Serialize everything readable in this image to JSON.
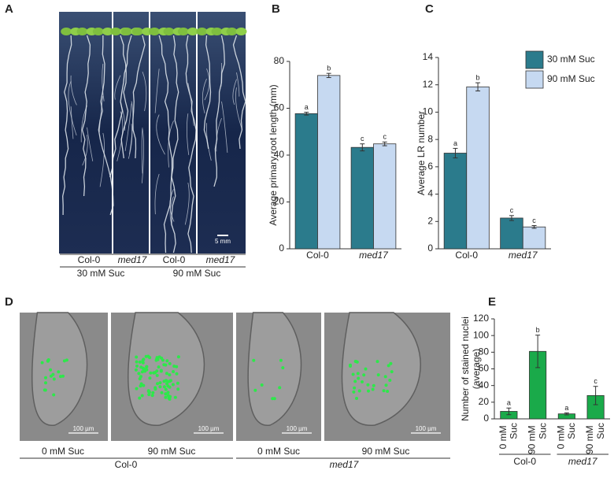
{
  "panel_labels": [
    "A",
    "B",
    "C",
    "D",
    "E"
  ],
  "panel_a": {
    "scale_bar": "5 mm",
    "genotypes": [
      "Col-0",
      "med17",
      "Col-0",
      "med17"
    ],
    "conditions": [
      "30 mM Suc",
      "90 mM Suc"
    ]
  },
  "panel_d": {
    "scale_bars": [
      "100 µm",
      "100 µm",
      "100 µm",
      "100 µm"
    ],
    "conditions": [
      "0 mM Suc",
      "90 mM Suc",
      "0 mM Suc",
      "90 mM Suc"
    ],
    "genotypes": [
      "Col-0",
      "med17"
    ]
  },
  "chart_data": [
    {
      "type": "bar",
      "ylabel": "Average primary root length (mm)",
      "categories": [
        "Col-0",
        "med17"
      ],
      "series": [
        {
          "color": "#2b7b8c",
          "values": [
            57.7,
            43.3
          ],
          "errors": [
            0.6,
            1.5
          ],
          "letters": [
            "a",
            "c"
          ]
        },
        {
          "color": "#c6d9f1",
          "values": [
            74,
            44.8
          ],
          "errors": [
            0.9,
            0.8
          ],
          "letters": [
            "b",
            "c"
          ]
        }
      ],
      "ylim": [
        0,
        80
      ],
      "yticks": [
        0,
        20,
        40,
        60,
        80
      ]
    },
    {
      "type": "bar",
      "ylabel": "Average LR number",
      "categories": [
        "Col-0",
        "med17"
      ],
      "series": [
        {
          "name": "30 mM Suc",
          "color": "#2b7b8c",
          "values": [
            7.0,
            2.25
          ],
          "errors": [
            0.35,
            0.18
          ],
          "letters": [
            "a",
            "c"
          ]
        },
        {
          "name": "90 mM Suc",
          "color": "#c6d9f1",
          "values": [
            11.85,
            1.6
          ],
          "errors": [
            0.3,
            0.1
          ],
          "letters": [
            "b",
            "c"
          ]
        }
      ],
      "ylim": [
        0,
        14
      ],
      "yticks": [
        0,
        2,
        4,
        6,
        8,
        10,
        12,
        14
      ],
      "legend": "upper right"
    },
    {
      "type": "bar",
      "ylabel": [
        "Number of stained nuclei",
        "(average)"
      ],
      "categories": [
        "0 mM Suc",
        "90 mM Suc",
        "0 mM Suc",
        "90 mM Suc"
      ],
      "groups": [
        "Col-0",
        "med17"
      ],
      "series": [
        {
          "color": "#1aaa4a",
          "values": [
            9,
            81,
            6,
            28
          ],
          "errors": [
            4,
            19.5,
            1.2,
            11
          ],
          "letters": [
            "a",
            "b",
            "a",
            "c"
          ]
        }
      ],
      "ylim": [
        0,
        120
      ],
      "yticks": [
        0,
        20,
        40,
        60,
        80,
        100,
        120
      ]
    }
  ]
}
